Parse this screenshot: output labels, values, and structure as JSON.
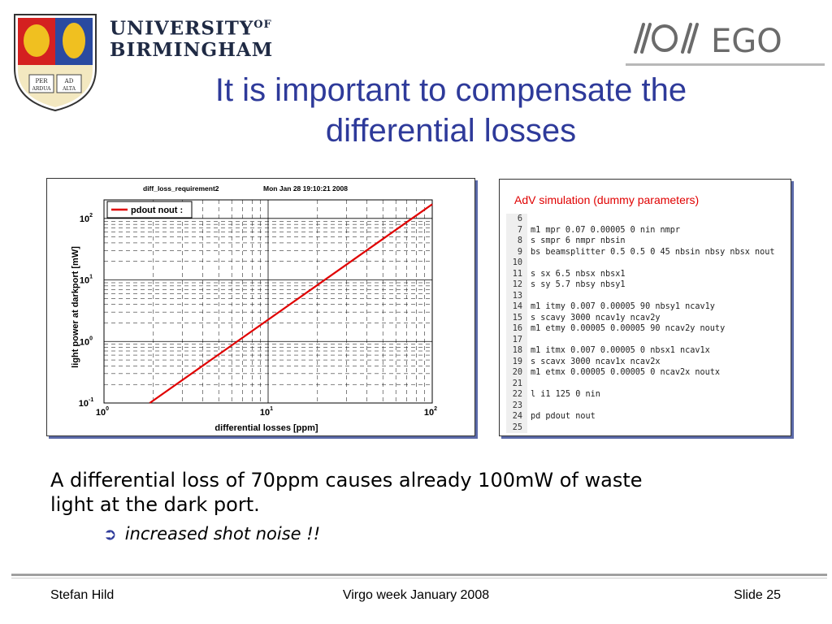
{
  "header": {
    "university_line1": "UNIVERSITY",
    "university_of": "OF",
    "university_line2": "BIRMINGHAM",
    "crest_text": {
      "per": "PER",
      "ad": "AD",
      "ardua": "ARDUA",
      "alta": "ALTA"
    },
    "ego_logo_text": "EGO"
  },
  "title_lines": [
    "It is important to compensate the",
    "differential losses"
  ],
  "figure_left": {
    "header_name": "diff_loss_requirement2",
    "header_date": "Mon Jan 28 19:10:21 2008",
    "chart_data": {
      "type": "line",
      "xlabel": "differential losses [ppm]",
      "ylabel": "light power at darkport [mW]",
      "xscale": "log",
      "yscale": "log",
      "xlim": [
        1,
        100
      ],
      "ylim": [
        0.1,
        200
      ],
      "xticks": [
        {
          "base": "10",
          "exp": "0"
        },
        {
          "base": "10",
          "exp": "1"
        },
        {
          "base": "10",
          "exp": "2"
        }
      ],
      "yticks": [
        {
          "base": "10",
          "exp": "-1"
        },
        {
          "base": "10",
          "exp": "0"
        },
        {
          "base": "10",
          "exp": "1"
        },
        {
          "base": "10",
          "exp": "2"
        }
      ],
      "grid": true,
      "legend_position": "top-left",
      "series": [
        {
          "name": "pdout nout :",
          "color": "#e00000",
          "x": [
            1.9,
            100
          ],
          "y": [
            0.1,
            170
          ]
        }
      ]
    }
  },
  "figure_right": {
    "title": "AdV simulation (dummy parameters)",
    "code_lines": [
      {
        "n": "6",
        "t": ""
      },
      {
        "n": "7",
        "t": "m1 mpr 0.07 0.00005 0 nin nmpr"
      },
      {
        "n": "8",
        "t": "s smpr 6 nmpr nbsin"
      },
      {
        "n": "9",
        "t": "bs beamsplitter 0.5 0.5 0 45 nbsin nbsy nbsx nout"
      },
      {
        "n": "10",
        "t": ""
      },
      {
        "n": "11",
        "t": "s sx 6.5 nbsx nbsx1"
      },
      {
        "n": "12",
        "t": "s sy 5.7 nbsy nbsy1"
      },
      {
        "n": "13",
        "t": ""
      },
      {
        "n": "14",
        "t": "m1 itmy 0.007 0.00005 90 nbsy1 ncav1y"
      },
      {
        "n": "15",
        "t": "s scavy 3000 ncav1y ncav2y"
      },
      {
        "n": "16",
        "t": "m1 etmy 0.00005 0.00005 90 ncav2y nouty"
      },
      {
        "n": "17",
        "t": ""
      },
      {
        "n": "18",
        "t": "m1 itmx 0.007 0.00005 0 nbsx1 ncav1x"
      },
      {
        "n": "19",
        "t": "s scavx 3000 ncav1x ncav2x"
      },
      {
        "n": "20",
        "t": "m1 etmx 0.00005 0.00005 0 ncav2x noutx"
      },
      {
        "n": "21",
        "t": ""
      },
      {
        "n": "22",
        "t": "l i1 125 0 nin"
      },
      {
        "n": "23",
        "t": ""
      },
      {
        "n": "24",
        "t": "pd pdout nout"
      },
      {
        "n": "25",
        "t": ""
      }
    ]
  },
  "body": {
    "main_lines": [
      "A differential loss of 70ppm causes already 100mW of waste",
      "light at the dark port."
    ],
    "sub_point": "increased shot noise !!",
    "sub_icon": "arrow-right-circle-icon"
  },
  "footer": {
    "author": "Stefan Hild",
    "event": "Virgo week January 2008",
    "slide": "Slide 25"
  },
  "colors": {
    "title": "#2e3a9a",
    "accent_red": "#e00000",
    "frame_shadow": "#5b6aa8"
  }
}
